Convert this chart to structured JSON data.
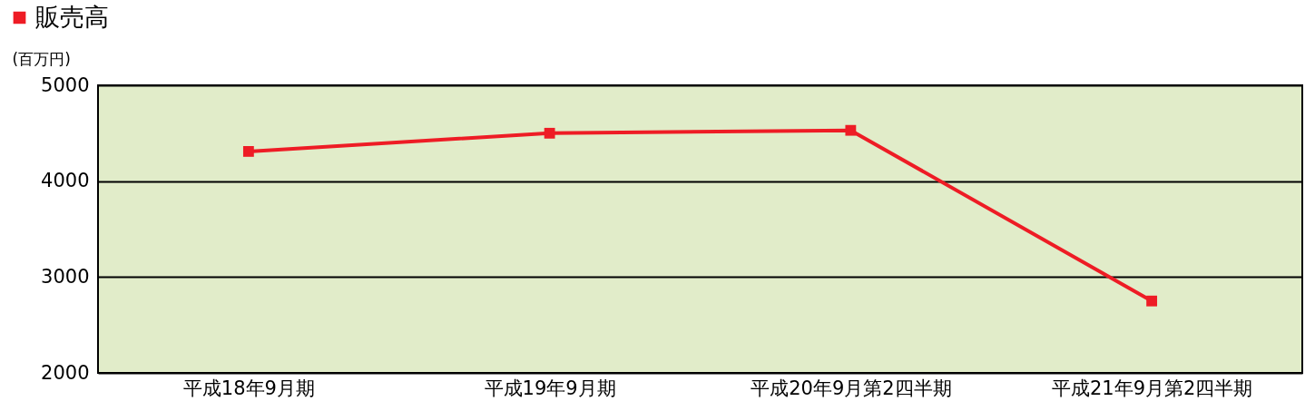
{
  "chart_data": {
    "type": "line",
    "categories": [
      "平成18年9月期",
      "平成19年9月期",
      "平成20年9月第2四半期",
      "平成21年9月第2四半期"
    ],
    "series": [
      {
        "name": "販売高",
        "color": "#ee1c25",
        "values": [
          4310,
          4500,
          4530,
          2750
        ]
      }
    ],
    "ylabel": "(百万円)",
    "ylim": [
      2000,
      5000
    ],
    "yticks": [
      2000,
      3000,
      4000,
      5000
    ],
    "grid": "y",
    "legend": "top left",
    "marker": "square",
    "line_style": "solid"
  }
}
